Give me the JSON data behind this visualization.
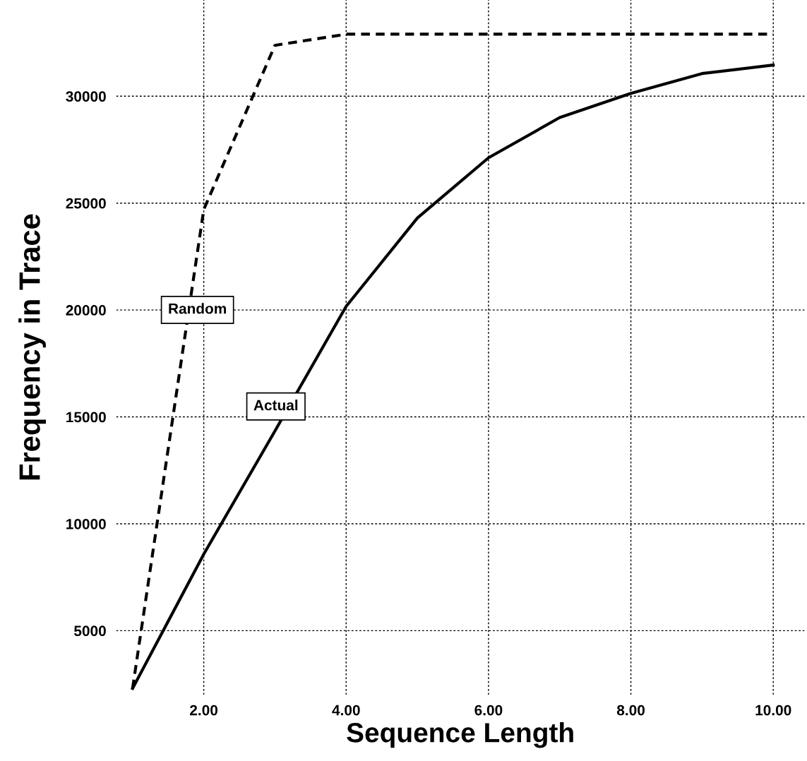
{
  "chart_data": {
    "type": "line",
    "xlabel": "Sequence Length",
    "ylabel": "Frequency in Trace",
    "x": [
      1,
      2,
      3,
      4,
      5,
      6,
      7,
      8,
      9,
      10
    ],
    "series": [
      {
        "name": "Random",
        "color": "#000000",
        "line_style": "dashed",
        "values": [
          2300,
          24700,
          32380,
          32900,
          32900,
          32900,
          32900,
          32900,
          32900,
          32900
        ]
      },
      {
        "name": "Actual",
        "color": "#000000",
        "line_style": "solid",
        "values": [
          2300,
          8580,
          14340,
          20170,
          24300,
          27120,
          29000,
          30130,
          31060,
          31460
        ]
      }
    ],
    "xlim": [
      0.77,
      10.44
    ],
    "ylim": [
      2000,
      34500
    ],
    "xticks": [
      {
        "value": 2,
        "label": "2.00"
      },
      {
        "value": 4,
        "label": "4.00"
      },
      {
        "value": 6,
        "label": "6.00"
      },
      {
        "value": 8,
        "label": "8.00"
      },
      {
        "value": 10,
        "label": "10.00"
      }
    ],
    "yticks": [
      5000,
      10000,
      15000,
      20000,
      25000,
      30000
    ],
    "grid": true,
    "legend": false,
    "marker": "none"
  }
}
